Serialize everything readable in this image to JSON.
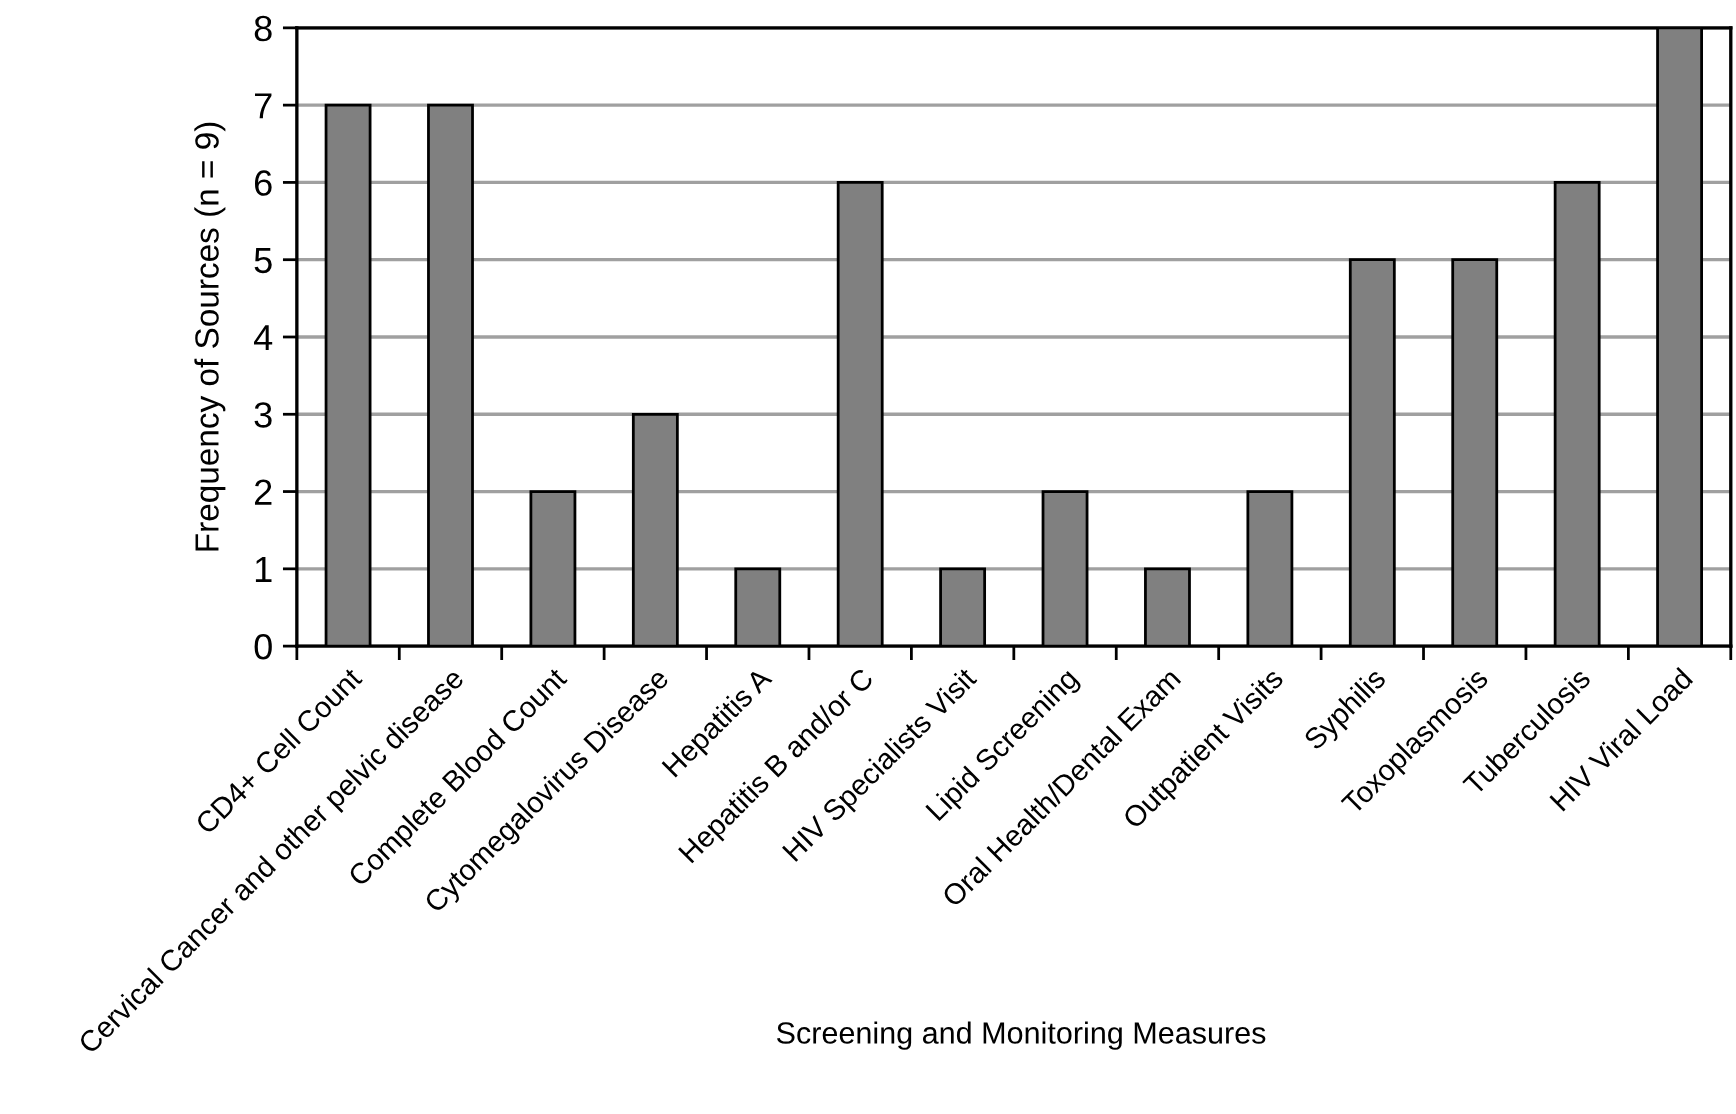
{
  "chart_data": {
    "type": "bar",
    "xlabel": "Screening and Monitoring Measures",
    "ylabel": "Frequency of Sources (n = 9)",
    "categories": [
      "CD4+ Cell Count",
      "Cervical Cancer and other pelvic disease",
      "Complete Blood Count",
      "Cytomegalovirus Disease",
      "Hepatitis A",
      "Hepatitis B and/or C",
      "HIV Specialists Visit",
      "Lipid Screening",
      "Oral Health/Dental Exam",
      "Outpatient Visits",
      "Syphilis",
      "Toxoplasmosis",
      "Tuberculosis",
      "HIV Viral Load"
    ],
    "values": [
      7,
      7,
      2,
      3,
      1,
      6,
      1,
      2,
      1,
      2,
      5,
      5,
      6,
      8
    ],
    "color": "#808080",
    "ylim": [
      0,
      8
    ],
    "yticks": [
      0,
      1,
      2,
      3,
      4,
      5,
      6,
      7,
      8
    ],
    "grid": "y",
    "legend": false
  }
}
